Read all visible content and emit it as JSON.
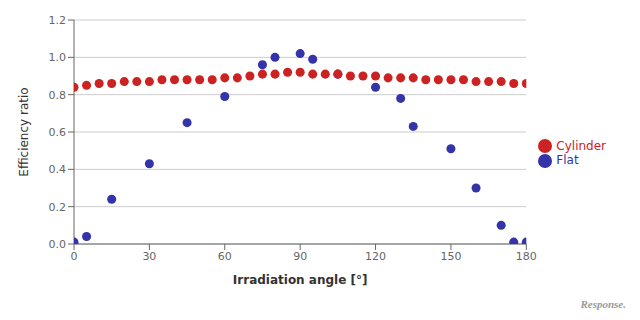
{
  "chart_data": {
    "type": "scatter",
    "xlabel": "Irradiation angle [°]",
    "ylabel": "Efficiency ratio",
    "xlim": [
      0,
      180
    ],
    "ylim": [
      0.0,
      1.2
    ],
    "xticks": [
      0,
      30,
      60,
      90,
      120,
      150,
      180
    ],
    "yticks": [
      {
        "value": 0.0,
        "label": "0.0"
      },
      0.2,
      0.4,
      0.6,
      0.8,
      {
        "value": 1.0,
        "label": "1.0"
      },
      1.2
    ],
    "grid": "y",
    "legend": "right",
    "annotations": [
      "Response."
    ],
    "series": [
      {
        "name": "Flat",
        "color": "#3333aa",
        "x": [
          0,
          5,
          15,
          30,
          45,
          60,
          75,
          80,
          90,
          95,
          105,
          120,
          130,
          135,
          150,
          160,
          170,
          175,
          180
        ],
        "values": [
          0.01,
          0.04,
          0.24,
          0.43,
          0.65,
          0.79,
          0.96,
          1.0,
          1.02,
          0.99,
          0.91,
          0.84,
          0.78,
          0.63,
          0.51,
          0.3,
          0.1,
          0.01,
          0.01
        ]
      },
      {
        "name": "Cylinder",
        "color": "#cc2222",
        "x": [
          0,
          5,
          10,
          15,
          20,
          25,
          30,
          35,
          40,
          45,
          50,
          55,
          60,
          65,
          70,
          75,
          80,
          85,
          90,
          95,
          100,
          105,
          110,
          115,
          120,
          125,
          130,
          135,
          140,
          145,
          150,
          155,
          160,
          165,
          170,
          175,
          180
        ],
        "values": [
          0.84,
          0.85,
          0.86,
          0.86,
          0.87,
          0.87,
          0.87,
          0.88,
          0.88,
          0.88,
          0.88,
          0.88,
          0.89,
          0.89,
          0.9,
          0.91,
          0.91,
          0.92,
          0.92,
          0.91,
          0.91,
          0.91,
          0.9,
          0.9,
          0.9,
          0.89,
          0.89,
          0.89,
          0.88,
          0.88,
          0.88,
          0.88,
          0.87,
          0.87,
          0.87,
          0.86,
          0.86
        ]
      }
    ]
  }
}
